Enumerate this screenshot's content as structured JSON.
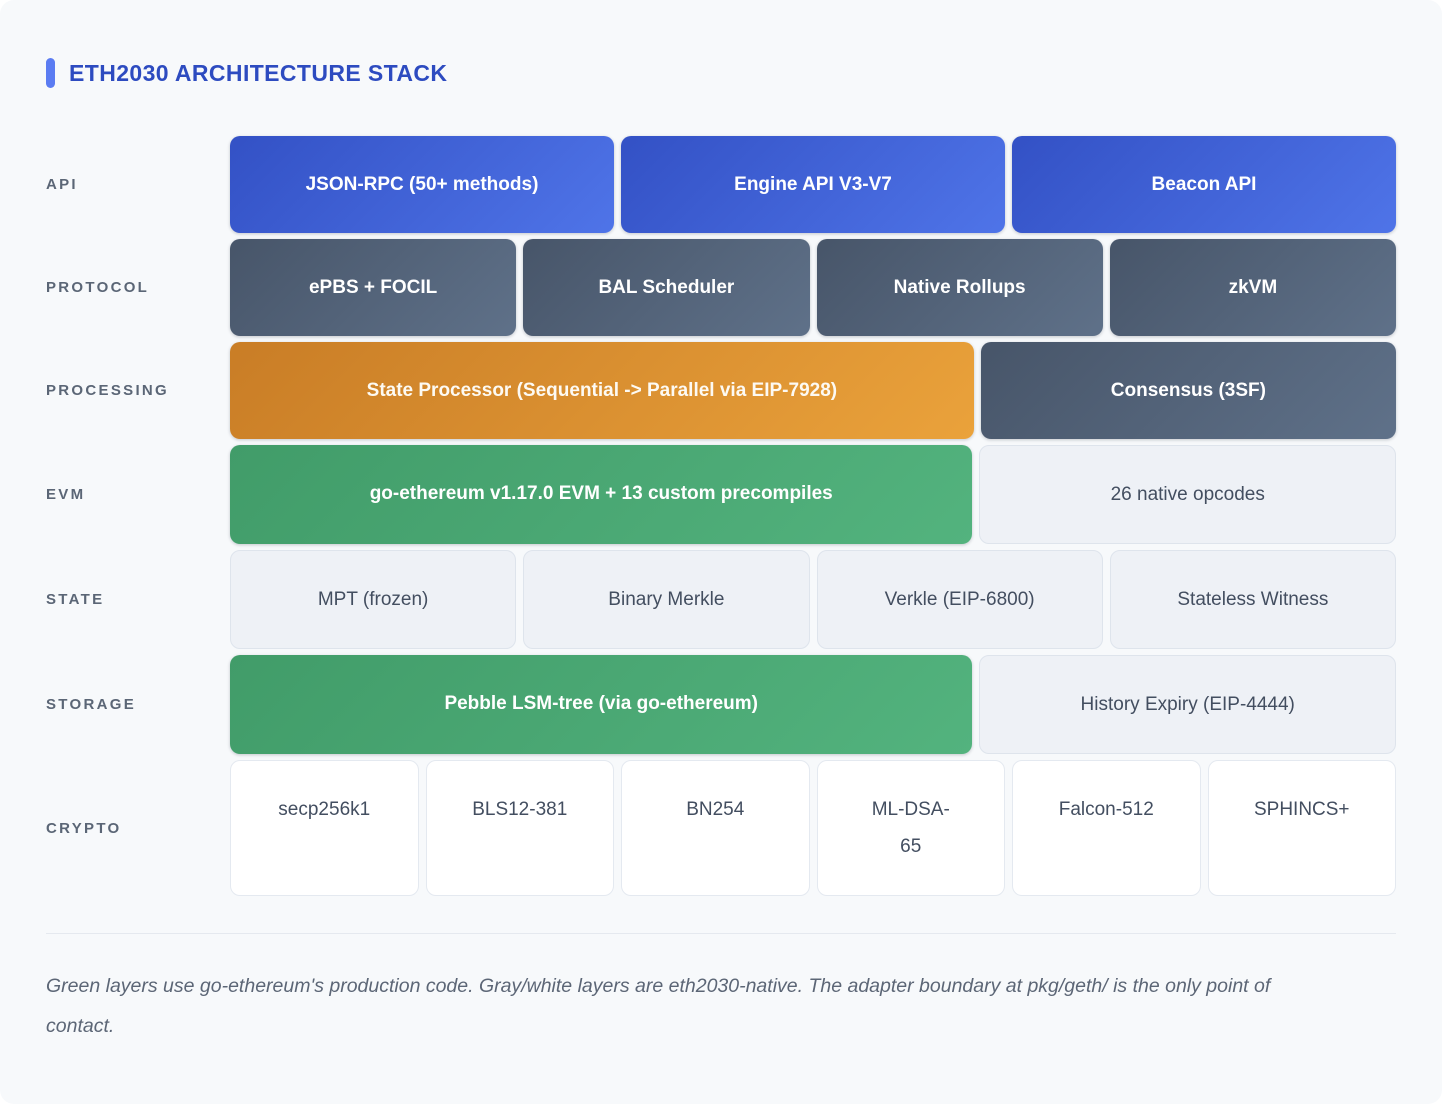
{
  "title": "ETH2030 ARCHITECTURE STACK",
  "colors": {
    "accent_bar": "#5b7cf2",
    "title_text": "#2d4bc0",
    "blue_block_from": "#3351c5",
    "blue_block_to": "#4f74e8",
    "slate_block_from": "#475569",
    "slate_block_to": "#5f7189",
    "orange_block_from": "#c97d26",
    "orange_block_to": "#eaa23b",
    "green_block_from": "#419c69",
    "green_block_to": "#53b37e",
    "light_block_bg": "#eef1f6",
    "white_block_bg": "#ffffff",
    "label_text": "#5b6676",
    "card_bg": "#f7f9fb"
  },
  "rows": [
    {
      "label": "API",
      "blocks": [
        {
          "text": "JSON-RPC (50+ methods)",
          "style": "blue",
          "flex": 1
        },
        {
          "text": "Engine API V3-V7",
          "style": "blue",
          "flex": 1
        },
        {
          "text": "Beacon API",
          "style": "blue",
          "flex": 1
        }
      ]
    },
    {
      "label": "PROTOCOL",
      "blocks": [
        {
          "text": "ePBS + FOCIL",
          "style": "slate",
          "flex": 1
        },
        {
          "text": "BAL Scheduler",
          "style": "slate",
          "flex": 1
        },
        {
          "text": "Native Rollups",
          "style": "slate",
          "flex": 1
        },
        {
          "text": "zkVM",
          "style": "slate",
          "flex": 1
        }
      ]
    },
    {
      "label": "PROCESSING",
      "blocks": [
        {
          "text": "State Processor (Sequential -> Parallel via EIP-7928)",
          "style": "orange",
          "flex": 65
        },
        {
          "text": "Consensus (3SF)",
          "style": "slate",
          "flex": 35
        }
      ]
    },
    {
      "label": "EVM",
      "blocks": [
        {
          "text": "go-ethereum v1.17.0 EVM + 13 custom precompiles",
          "style": "green",
          "flex": 65
        },
        {
          "text": "26 native opcodes",
          "style": "light",
          "flex": 35
        }
      ]
    },
    {
      "label": "STATE",
      "blocks": [
        {
          "text": "MPT (frozen)",
          "style": "light",
          "flex": 1
        },
        {
          "text": "Binary Merkle",
          "style": "light",
          "flex": 1
        },
        {
          "text": "Verkle (EIP-6800)",
          "style": "light",
          "flex": 1
        },
        {
          "text": "Stateless Witness",
          "style": "light",
          "flex": 1
        }
      ]
    },
    {
      "label": "STORAGE",
      "blocks": [
        {
          "text": "Pebble LSM-tree (via go-ethereum)",
          "style": "green",
          "flex": 65
        },
        {
          "text": "History Expiry (EIP-4444)",
          "style": "light",
          "flex": 35
        }
      ]
    },
    {
      "label": "CRYPTO",
      "blocks": [
        {
          "text": "secp256k1",
          "style": "white",
          "flex": 1
        },
        {
          "text": "BLS12-381",
          "style": "white",
          "flex": 1
        },
        {
          "text": "BN254",
          "style": "white",
          "flex": 1
        },
        {
          "text": "ML-DSA-65",
          "style": "white",
          "flex": 1,
          "wrap": true
        },
        {
          "text": "Falcon-512",
          "style": "white",
          "flex": 1
        },
        {
          "text": "SPHINCS+",
          "style": "white",
          "flex": 1
        }
      ]
    }
  ],
  "footnote": "Green layers use go-ethereum's production code. Gray/white layers are eth2030-native. The adapter boundary at pkg/geth/ is the only point of contact."
}
